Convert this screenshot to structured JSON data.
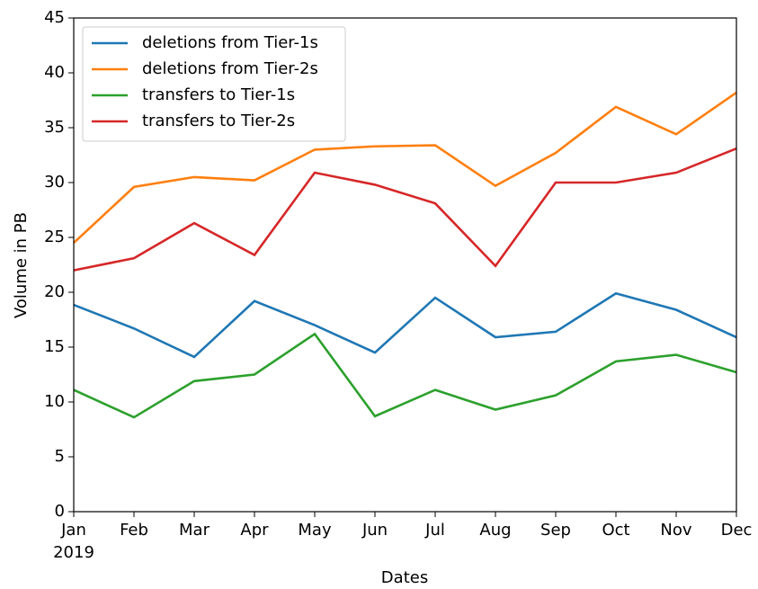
{
  "chart_data": {
    "type": "line",
    "xlabel": "Dates",
    "ylabel": "Volume in PB",
    "categories": [
      "Jan",
      "Feb",
      "Mar",
      "Apr",
      "May",
      "Jun",
      "Jul",
      "Aug",
      "Sep",
      "Oct",
      "Nov",
      "Dec"
    ],
    "year_label": "2019",
    "series": [
      {
        "name": "deletions from Tier-1s",
        "color": "#1f77b4",
        "values": [
          18.85,
          16.7,
          14.1,
          19.2,
          17.0,
          14.5,
          19.5,
          15.9,
          16.4,
          19.9,
          18.4,
          15.9
        ]
      },
      {
        "name": "deletions from Tier-2s",
        "color": "#ff7f0e",
        "values": [
          24.5,
          29.6,
          30.5,
          30.2,
          33.0,
          33.3,
          33.4,
          29.7,
          32.7,
          36.9,
          34.4,
          38.2
        ]
      },
      {
        "name": "transfers to Tier-1s",
        "color": "#2ca02c",
        "values": [
          11.1,
          8.6,
          11.9,
          12.5,
          16.2,
          8.7,
          11.1,
          9.3,
          10.6,
          13.7,
          14.3,
          12.7
        ]
      },
      {
        "name": "transfers to Tier-2s",
        "color": "#d62728",
        "values": [
          22.0,
          23.1,
          26.3,
          23.4,
          30.9,
          29.8,
          28.1,
          22.4,
          30.0,
          30.0,
          30.9,
          33.1
        ]
      }
    ],
    "ylim": [
      0,
      45
    ],
    "yticks": [
      0,
      5,
      10,
      15,
      20,
      25,
      30,
      35,
      40,
      45
    ],
    "legend": "upper left"
  }
}
